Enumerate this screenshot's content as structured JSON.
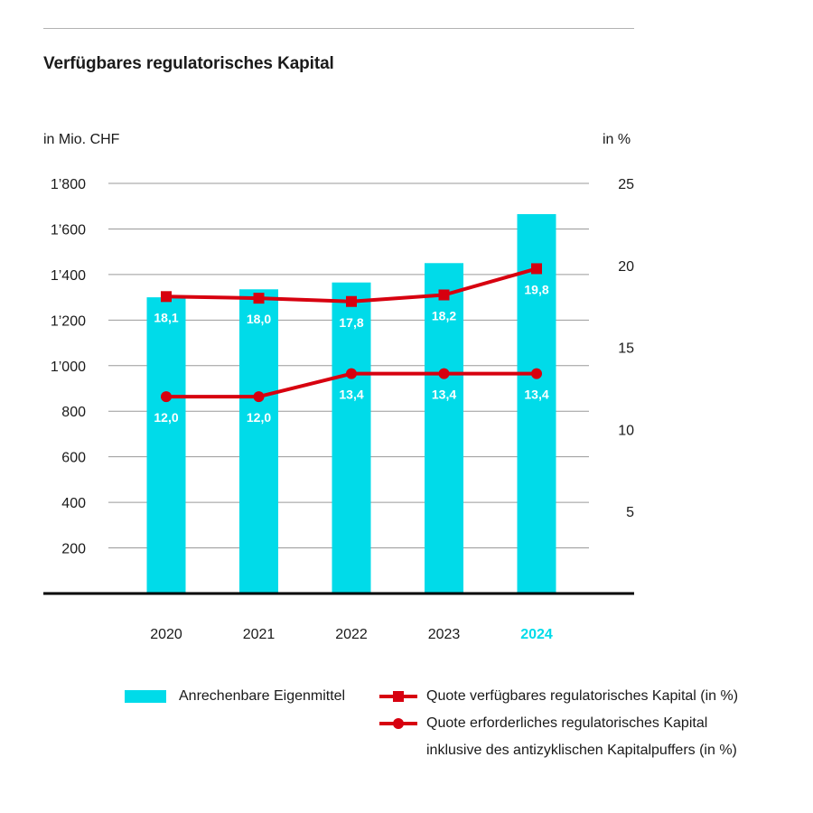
{
  "title": "Verfügbares regulatorisches Kapital",
  "left_axis_unit": "in Mio. CHF",
  "right_axis_unit": "in %",
  "colors": {
    "bar": "#00dbe9",
    "line": "#d7000f",
    "highlight_year": "#00dbe9",
    "axis": "#000000",
    "grid": "#9a9a9a"
  },
  "chart_data": {
    "type": "bar",
    "categories": [
      "2020",
      "2021",
      "2022",
      "2023",
      "2024"
    ],
    "highlight_category": "2024",
    "left_axis": {
      "ylim": [
        0,
        1800
      ],
      "ticks": [
        200,
        400,
        600,
        800,
        1000,
        1200,
        1400,
        1600,
        1800
      ],
      "tick_labels": [
        "200",
        "400",
        "600",
        "800",
        "1’000",
        "1’200",
        "1’400",
        "1’600",
        "1’800"
      ]
    },
    "right_axis": {
      "ylim": [
        0,
        25
      ],
      "ticks": [
        5,
        10,
        15,
        20,
        25
      ],
      "tick_labels": [
        "5",
        "10",
        "15",
        "20",
        "25"
      ]
    },
    "grid": true,
    "series": [
      {
        "name": "Anrechenbare Eigenmittel",
        "type": "bar",
        "axis": "left",
        "values": [
          1300,
          1335,
          1365,
          1450,
          1665
        ]
      },
      {
        "name": "Quote verfügbares regulatorisches Kapital (in %)",
        "type": "line",
        "marker": "square",
        "axis": "right",
        "values": [
          18.1,
          18.0,
          17.8,
          18.2,
          19.8
        ],
        "labels": [
          "18,1",
          "18,0",
          "17,8",
          "18,2",
          "19,8"
        ]
      },
      {
        "name": "Quote erforderliches regulatorisches Kapital\ninklusive des antizyklischen Kapitalpuffers (in %)",
        "type": "line",
        "marker": "circle",
        "axis": "right",
        "values": [
          12.0,
          12.0,
          13.4,
          13.4,
          13.4
        ],
        "labels": [
          "12,0",
          "12,0",
          "13,4",
          "13,4",
          "13,4"
        ]
      }
    ],
    "legend_position": "bottom"
  }
}
